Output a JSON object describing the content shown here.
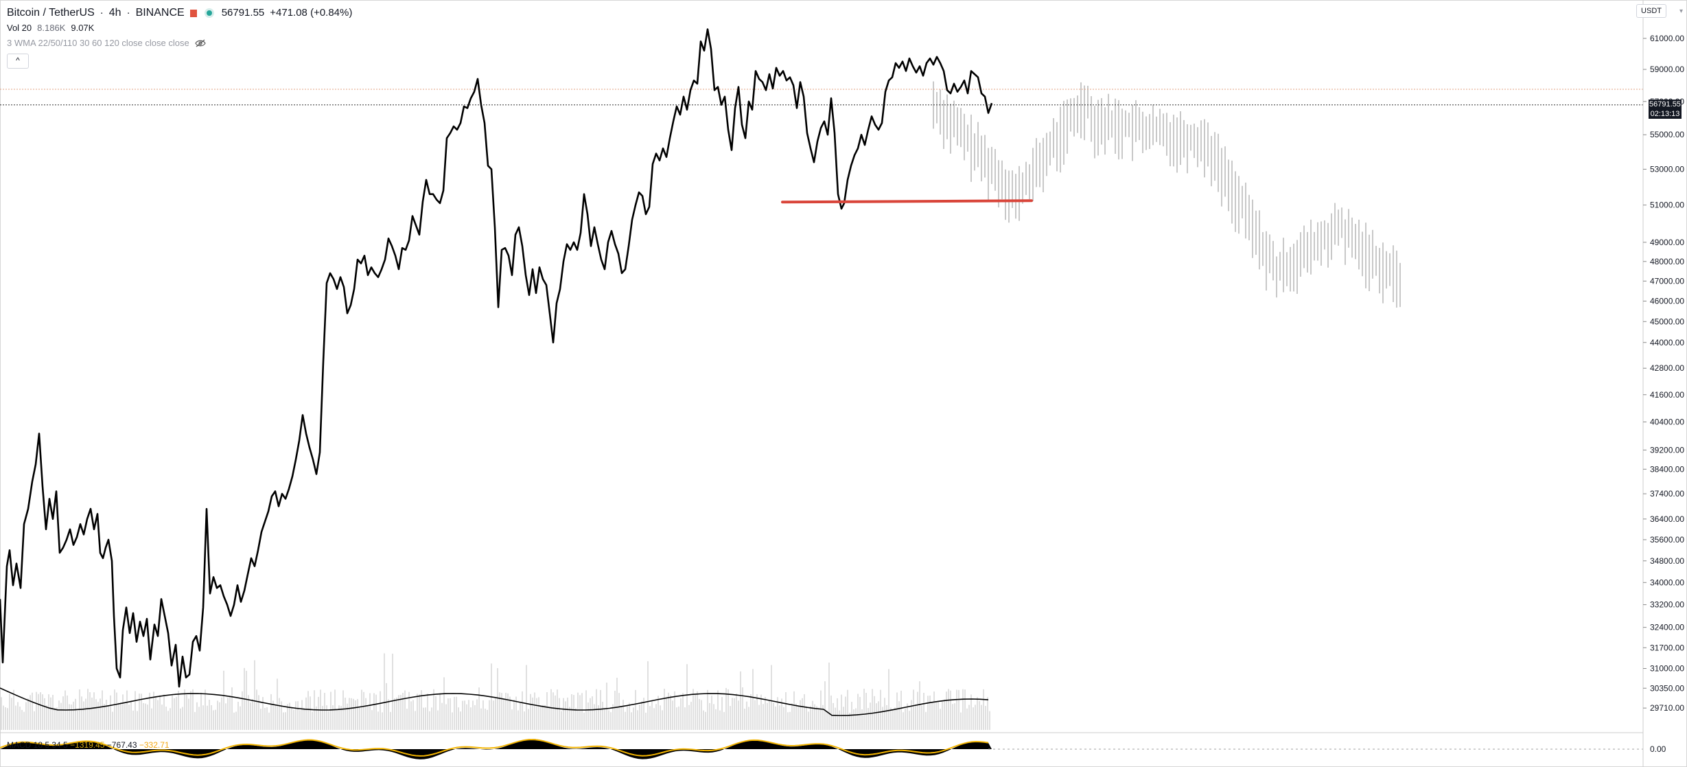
{
  "header": {
    "symbol": "Bitcoin / TetherUS",
    "interval": "4h",
    "exchange": "BINANCE",
    "price": "56791.55",
    "change": "+471.08 (+0.84%)",
    "volume_label": "Vol 20",
    "volume_value_1": "8.186K",
    "volume_value_2": "9.07K",
    "indicator_label": "3 WMA 22/50/110 30 60 120 close close close",
    "collapse_label": "^"
  },
  "currency_badge": "USDT",
  "price_badge": {
    "price": "56791.55",
    "timer": "02:13:13"
  },
  "macd_legend": {
    "label": "MACD 18 5 34 5",
    "v1": "−1319.45",
    "v2": "−767.43",
    "v3": "−332.71"
  },
  "colors": {
    "price_line": "#000000",
    "ghost_bars": "#c8c8c8",
    "support_line": "#d9453a",
    "volume_bars": "#d2d2d2",
    "volume_ma": "#000000",
    "macd_fill": "#000000",
    "macd_signal": "#f3b400"
  },
  "chart_data": {
    "type": "line",
    "title": "Bitcoin / TetherUS",
    "y_axis_ticks": [
      61000,
      59000,
      57000,
      55000,
      53000,
      51000,
      49000,
      48000,
      47000,
      46000,
      45000,
      44000,
      42800,
      41600,
      40400,
      39200,
      38400,
      37400,
      36400,
      35600,
      34800,
      34000,
      33200,
      32400,
      31700,
      31000,
      30350,
      29710
    ],
    "ylim": [
      29300,
      61900
    ],
    "scale": "log",
    "grid": false,
    "series": [
      {
        "type": "line",
        "points": [
          [
            0,
            33400
          ],
          [
            4,
            31200
          ],
          [
            10,
            34600
          ],
          [
            14,
            35200
          ],
          [
            19,
            33900
          ],
          [
            24,
            34700
          ],
          [
            30,
            33800
          ],
          [
            35,
            36200
          ],
          [
            41,
            36800
          ],
          [
            47,
            37900
          ],
          [
            52,
            38600
          ],
          [
            57,
            39900
          ],
          [
            62,
            37700
          ],
          [
            67,
            36000
          ],
          [
            72,
            37200
          ],
          [
            77,
            36400
          ],
          [
            82,
            37500
          ],
          [
            87,
            35100
          ],
          [
            92,
            35300
          ],
          [
            97,
            35600
          ],
          [
            102,
            36000
          ],
          [
            107,
            35400
          ],
          [
            112,
            35700
          ],
          [
            117,
            36200
          ],
          [
            122,
            35800
          ],
          [
            127,
            36400
          ],
          [
            132,
            36800
          ],
          [
            137,
            36000
          ],
          [
            142,
            36600
          ],
          [
            146,
            35100
          ],
          [
            150,
            34900
          ],
          [
            154,
            35300
          ],
          [
            158,
            35600
          ],
          [
            163,
            34800
          ],
          [
            166,
            32800
          ],
          [
            170,
            31000
          ],
          [
            175,
            30700
          ],
          [
            179,
            32300
          ],
          [
            184,
            33100
          ],
          [
            189,
            32200
          ],
          [
            194,
            32900
          ],
          [
            199,
            31900
          ],
          [
            204,
            32600
          ],
          [
            209,
            32100
          ],
          [
            214,
            32700
          ],
          [
            219,
            31300
          ],
          [
            225,
            32500
          ],
          [
            230,
            32100
          ],
          [
            235,
            33400
          ],
          [
            240,
            32800
          ],
          [
            245,
            32200
          ],
          [
            250,
            31100
          ],
          [
            256,
            31800
          ],
          [
            261,
            30400
          ],
          [
            266,
            31400
          ],
          [
            271,
            30700
          ],
          [
            276,
            30800
          ],
          [
            281,
            31900
          ],
          [
            286,
            32100
          ],
          [
            291,
            31600
          ],
          [
            296,
            33100
          ],
          [
            301,
            36800
          ],
          [
            306,
            33600
          ],
          [
            311,
            34200
          ],
          [
            316,
            33800
          ],
          [
            321,
            33900
          ],
          [
            326,
            33500
          ],
          [
            331,
            33200
          ],
          [
            336,
            32800
          ],
          [
            341,
            33200
          ],
          [
            346,
            33900
          ],
          [
            351,
            33300
          ],
          [
            356,
            33700
          ],
          [
            361,
            34300
          ],
          [
            366,
            34900
          ],
          [
            371,
            34600
          ],
          [
            376,
            35200
          ],
          [
            381,
            35900
          ],
          [
            386,
            36300
          ],
          [
            391,
            36700
          ],
          [
            396,
            37300
          ],
          [
            401,
            37500
          ],
          [
            406,
            36900
          ],
          [
            411,
            37400
          ],
          [
            416,
            37200
          ],
          [
            421,
            37600
          ],
          [
            426,
            38100
          ],
          [
            431,
            38800
          ],
          [
            436,
            39600
          ],
          [
            441,
            40700
          ],
          [
            446,
            39900
          ],
          [
            451,
            39300
          ],
          [
            456,
            38800
          ],
          [
            461,
            38200
          ],
          [
            466,
            39100
          ],
          [
            471,
            43100
          ],
          [
            476,
            46900
          ],
          [
            481,
            47400
          ],
          [
            486,
            47100
          ],
          [
            491,
            46600
          ],
          [
            496,
            47200
          ],
          [
            501,
            46700
          ],
          [
            506,
            45400
          ],
          [
            511,
            45800
          ],
          [
            516,
            46600
          ],
          [
            521,
            48100
          ],
          [
            526,
            47900
          ],
          [
            531,
            48300
          ],
          [
            536,
            47300
          ],
          [
            541,
            47700
          ],
          [
            546,
            47400
          ],
          [
            551,
            47200
          ],
          [
            556,
            47600
          ],
          [
            561,
            48100
          ],
          [
            566,
            49200
          ],
          [
            571,
            48800
          ],
          [
            576,
            48300
          ],
          [
            581,
            47600
          ],
          [
            586,
            48700
          ],
          [
            591,
            48600
          ],
          [
            596,
            49100
          ],
          [
            601,
            50400
          ],
          [
            606,
            49900
          ],
          [
            611,
            49400
          ],
          [
            616,
            51200
          ],
          [
            621,
            52400
          ],
          [
            626,
            51600
          ],
          [
            631,
            51600
          ],
          [
            636,
            51300
          ],
          [
            641,
            51100
          ],
          [
            646,
            51800
          ],
          [
            651,
            54800
          ],
          [
            656,
            55100
          ],
          [
            661,
            55500
          ],
          [
            666,
            55300
          ],
          [
            671,
            55700
          ],
          [
            676,
            56700
          ],
          [
            681,
            56600
          ],
          [
            686,
            57200
          ],
          [
            691,
            57600
          ],
          [
            696,
            58400
          ],
          [
            701,
            56800
          ],
          [
            706,
            55700
          ],
          [
            711,
            53200
          ],
          [
            716,
            53000
          ],
          [
            721,
            49800
          ],
          [
            726,
            45700
          ],
          [
            731,
            48600
          ],
          [
            736,
            48700
          ],
          [
            741,
            48300
          ],
          [
            746,
            47300
          ],
          [
            751,
            49400
          ],
          [
            756,
            49800
          ],
          [
            761,
            48800
          ],
          [
            766,
            47300
          ],
          [
            771,
            46300
          ],
          [
            776,
            47600
          ],
          [
            781,
            46400
          ],
          [
            786,
            47700
          ],
          [
            791,
            47100
          ],
          [
            796,
            46800
          ],
          [
            801,
            45400
          ],
          [
            806,
            44000
          ],
          [
            811,
            45900
          ],
          [
            816,
            46600
          ],
          [
            821,
            48000
          ],
          [
            826,
            48900
          ],
          [
            831,
            48600
          ],
          [
            836,
            49000
          ],
          [
            841,
            48600
          ],
          [
            846,
            49500
          ],
          [
            851,
            51600
          ],
          [
            856,
            50500
          ],
          [
            861,
            48800
          ],
          [
            866,
            49800
          ],
          [
            871,
            48900
          ],
          [
            876,
            48100
          ],
          [
            881,
            47600
          ],
          [
            886,
            49000
          ],
          [
            891,
            49600
          ],
          [
            896,
            48900
          ],
          [
            901,
            48400
          ],
          [
            906,
            47400
          ],
          [
            911,
            47600
          ],
          [
            916,
            48800
          ],
          [
            921,
            50200
          ],
          [
            926,
            51000
          ],
          [
            931,
            51700
          ],
          [
            936,
            51500
          ],
          [
            941,
            50500
          ],
          [
            946,
            50900
          ],
          [
            951,
            53300
          ],
          [
            956,
            53900
          ],
          [
            961,
            53500
          ],
          [
            966,
            54200
          ],
          [
            971,
            53700
          ],
          [
            976,
            54800
          ],
          [
            981,
            55800
          ],
          [
            986,
            56700
          ],
          [
            991,
            56200
          ],
          [
            996,
            57300
          ],
          [
            1001,
            56500
          ],
          [
            1006,
            57700
          ],
          [
            1011,
            58300
          ],
          [
            1016,
            58100
          ],
          [
            1021,
            60800
          ],
          [
            1026,
            60200
          ],
          [
            1031,
            61600
          ],
          [
            1036,
            60300
          ],
          [
            1041,
            57700
          ],
          [
            1046,
            57900
          ],
          [
            1051,
            56800
          ],
          [
            1056,
            57300
          ],
          [
            1061,
            55300
          ],
          [
            1066,
            54100
          ],
          [
            1071,
            56600
          ],
          [
            1076,
            57900
          ],
          [
            1081,
            55600
          ],
          [
            1086,
            54800
          ],
          [
            1091,
            57000
          ],
          [
            1096,
            56500
          ],
          [
            1101,
            58900
          ],
          [
            1106,
            58400
          ],
          [
            1111,
            58200
          ],
          [
            1116,
            57700
          ],
          [
            1121,
            58700
          ],
          [
            1126,
            57800
          ],
          [
            1131,
            59100
          ],
          [
            1136,
            58600
          ],
          [
            1141,
            58900
          ],
          [
            1146,
            58300
          ],
          [
            1151,
            58500
          ],
          [
            1156,
            58000
          ],
          [
            1161,
            56600
          ],
          [
            1166,
            58200
          ],
          [
            1171,
            57300
          ],
          [
            1176,
            55100
          ],
          [
            1181,
            54200
          ],
          [
            1186,
            53400
          ],
          [
            1191,
            54600
          ],
          [
            1196,
            55400
          ],
          [
            1201,
            55800
          ],
          [
            1206,
            55000
          ],
          [
            1211,
            57200
          ],
          [
            1216,
            55100
          ],
          [
            1221,
            51600
          ],
          [
            1226,
            50800
          ],
          [
            1230,
            51100
          ],
          [
            1235,
            52400
          ],
          [
            1240,
            53200
          ],
          [
            1245,
            53800
          ],
          [
            1250,
            54200
          ],
          [
            1255,
            55000
          ],
          [
            1260,
            54400
          ],
          [
            1265,
            55300
          ],
          [
            1270,
            56100
          ],
          [
            1275,
            55600
          ],
          [
            1280,
            55300
          ],
          [
            1285,
            55700
          ],
          [
            1290,
            57600
          ],
          [
            1295,
            58300
          ],
          [
            1300,
            58500
          ],
          [
            1305,
            59400
          ],
          [
            1310,
            59100
          ],
          [
            1315,
            59500
          ],
          [
            1320,
            58900
          ],
          [
            1325,
            59700
          ],
          [
            1330,
            59200
          ],
          [
            1335,
            58800
          ],
          [
            1340,
            59200
          ],
          [
            1345,
            58600
          ],
          [
            1350,
            59400
          ],
          [
            1355,
            59700
          ],
          [
            1360,
            59300
          ],
          [
            1365,
            59800
          ],
          [
            1370,
            59400
          ],
          [
            1375,
            58900
          ],
          [
            1380,
            57700
          ],
          [
            1385,
            57500
          ],
          [
            1390,
            58100
          ],
          [
            1395,
            57600
          ],
          [
            1400,
            57900
          ],
          [
            1405,
            58300
          ],
          [
            1410,
            57500
          ],
          [
            1415,
            58900
          ],
          [
            1420,
            58700
          ],
          [
            1425,
            58500
          ],
          [
            1430,
            57500
          ],
          [
            1435,
            57300
          ],
          [
            1440,
            56300
          ],
          [
            1445,
            56900
          ]
        ]
      }
    ],
    "annotation": {
      "type": "horizontal_support_line",
      "price": 51200
    }
  }
}
